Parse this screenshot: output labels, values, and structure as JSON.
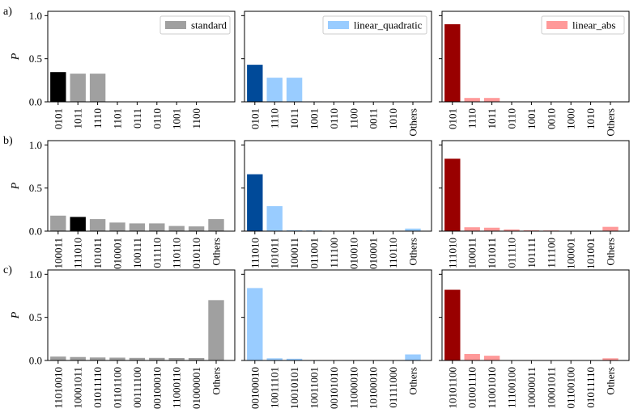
{
  "colors": {
    "standard": {
      "base": "#a0a0a0",
      "highlight": "#000000"
    },
    "linear_quadratic": {
      "base": "#99ccff",
      "highlight": "#004a99"
    },
    "linear_abs": {
      "base": "#ff9999",
      "highlight": "#990000"
    }
  },
  "chart_data": [
    {
      "type": "bar",
      "row": "a)",
      "col": "standard",
      "legend": "standard",
      "ylabel": "P",
      "ylim": [
        0,
        1.05
      ],
      "yticks": [
        "0.0",
        "0.5",
        "1.0"
      ],
      "ytick_values": [
        0,
        0.5,
        1.0
      ],
      "categories": [
        "0101",
        "1011",
        "1110",
        "1101",
        "0111",
        "0110",
        "1001",
        "1100"
      ],
      "values": [
        0.345,
        0.327,
        0.327,
        0.0,
        0.0,
        0.0,
        0.0,
        0.0
      ],
      "highlight_index": 0
    },
    {
      "type": "bar",
      "row": "a)",
      "col": "linear_quadratic",
      "legend": "linear_quadratic",
      "ylim": [
        0,
        1.05
      ],
      "categories": [
        "0101",
        "1110",
        "1011",
        "1001",
        "0110",
        "1100",
        "0011",
        "1010",
        "Others"
      ],
      "values": [
        0.43,
        0.28,
        0.28,
        0.005,
        0.002,
        0.0,
        0.0,
        0.0,
        0.0
      ],
      "highlight_index": 0
    },
    {
      "type": "bar",
      "row": "a)",
      "col": "linear_abs",
      "legend": "linear_abs",
      "ylim": [
        0,
        1.05
      ],
      "categories": [
        "0101",
        "1110",
        "1011",
        "0110",
        "1001",
        "0010",
        "1000",
        "1010",
        "Others"
      ],
      "values": [
        0.9,
        0.045,
        0.045,
        0.002,
        0.002,
        0.0,
        0.0,
        0.0,
        0.0
      ],
      "highlight_index": 0
    },
    {
      "type": "bar",
      "row": "b)",
      "col": "standard",
      "ylabel": "P",
      "ylim": [
        0,
        1.05
      ],
      "yticks": [
        "0.0",
        "0.5",
        "1.0"
      ],
      "ytick_values": [
        0,
        0.5,
        1.0
      ],
      "categories": [
        "100011",
        "111010",
        "101011",
        "010001",
        "100111",
        "011110",
        "110110",
        "010110",
        "Others"
      ],
      "values": [
        0.18,
        0.165,
        0.14,
        0.1,
        0.09,
        0.09,
        0.06,
        0.055,
        0.14
      ],
      "highlight_index": 1
    },
    {
      "type": "bar",
      "row": "b)",
      "col": "linear_quadratic",
      "ylim": [
        0,
        1.05
      ],
      "categories": [
        "111010",
        "101011",
        "100011",
        "011001",
        "111100",
        "010010",
        "010001",
        "110110",
        "Others"
      ],
      "values": [
        0.66,
        0.29,
        0.01,
        0.008,
        0.0,
        0.0,
        0.0,
        0.0,
        0.03
      ],
      "highlight_index": 0
    },
    {
      "type": "bar",
      "row": "b)",
      "col": "linear_abs",
      "ylim": [
        0,
        1.05
      ],
      "categories": [
        "111010",
        "100011",
        "101011",
        "011110",
        "101111",
        "111100",
        "100001",
        "101001",
        "Others"
      ],
      "values": [
        0.84,
        0.045,
        0.04,
        0.02,
        0.01,
        0.008,
        0.005,
        0.004,
        0.05
      ],
      "highlight_index": 0
    },
    {
      "type": "bar",
      "row": "c)",
      "col": "standard",
      "ylabel": "P",
      "ylim": [
        0,
        1.05
      ],
      "yticks": [
        "0.0",
        "0.5",
        "1.0"
      ],
      "ytick_values": [
        0,
        0.5,
        1.0
      ],
      "categories": [
        "11010010",
        "10001011",
        "01011110",
        "01101100",
        "00111100",
        "00100010",
        "11000110",
        "01000001",
        "Others"
      ],
      "values": [
        0.045,
        0.04,
        0.035,
        0.033,
        0.03,
        0.03,
        0.028,
        0.028,
        0.7
      ],
      "highlight_index": -1
    },
    {
      "type": "bar",
      "row": "c)",
      "col": "linear_quadratic",
      "ylim": [
        0,
        1.05
      ],
      "categories": [
        "00100010",
        "10011101",
        "10010101",
        "10011001",
        "00101010",
        "11000010",
        "10100010",
        "01111000",
        "Others"
      ],
      "values": [
        0.84,
        0.025,
        0.02,
        0.005,
        0.003,
        0.002,
        0.0,
        0.0,
        0.07
      ],
      "highlight_index": -1
    },
    {
      "type": "bar",
      "row": "c)",
      "col": "linear_abs",
      "ylim": [
        0,
        1.05
      ],
      "categories": [
        "10101100",
        "01001110",
        "11001010",
        "11100100",
        "10000011",
        "10001011",
        "01100100",
        "01011110",
        "Others"
      ],
      "values": [
        0.82,
        0.075,
        0.055,
        0.004,
        0.003,
        0.002,
        0.001,
        0.001,
        0.025
      ],
      "highlight_index": 0
    }
  ]
}
